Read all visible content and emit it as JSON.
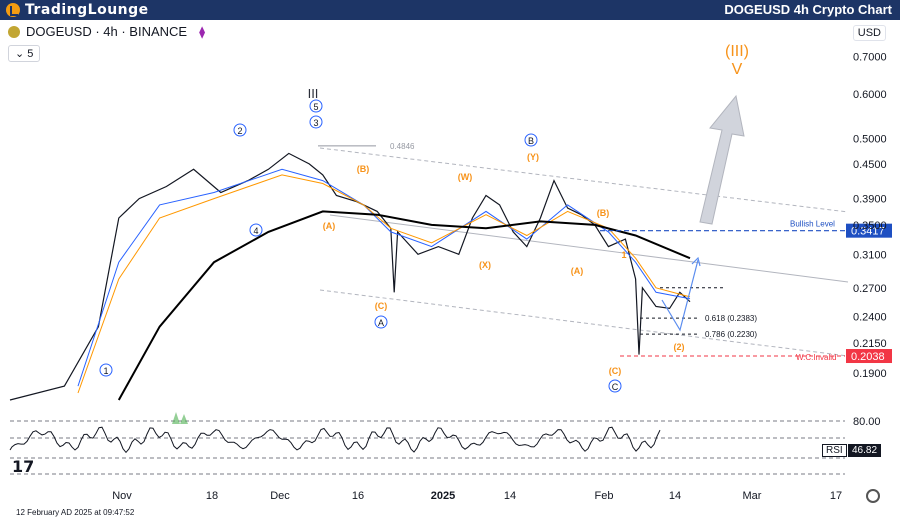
{
  "header": {
    "brand": "TradingLounge",
    "chart_title": "DOGEUSD 4h Crypto Chart"
  },
  "symbol": {
    "label": "DOGEUSD · 4h · BINANCE"
  },
  "indicators_count": "5",
  "currency": "USD",
  "footer": {
    "timestamp": "12 February AD 2025 at 09:47:52"
  },
  "rsi": {
    "label": "RSI",
    "value": "46.82",
    "level": "80.00"
  },
  "chart_data": {
    "type": "line",
    "scale": "log",
    "ylim": [
      0.17,
      0.75
    ],
    "y_ticks": [
      "0.7000",
      "0.6000",
      "0.5000",
      "0.4500",
      "0.3900",
      "0.3500",
      "0.3100",
      "0.2700",
      "0.2400",
      "0.2150",
      "0.1900"
    ],
    "x_ticks": [
      "Nov",
      "18",
      "Dec",
      "16",
      "2025",
      "14",
      "Feb",
      "14",
      "Mar",
      "17"
    ],
    "price_labels": [
      {
        "text": "0.3417",
        "kind": "bullish",
        "color": "#1e4fc2"
      },
      {
        "text": "0.2038",
        "kind": "invalid",
        "color": "#f23645"
      }
    ],
    "levels": [
      {
        "label": "Bullish Level",
        "value": 0.3417
      },
      {
        "label": "W.C.Invalid",
        "value": 0.2038
      },
      {
        "label": "0.618 (0.2383)",
        "value": 0.2383
      },
      {
        "label": "0.786 (0.2230)",
        "value": 0.223
      },
      {
        "label": "0.4846",
        "value": 0.4846
      }
    ],
    "series": [
      {
        "name": "",
        "color": "#131722",
        "points": [
          [
            0.0,
            0.17
          ],
          [
            0.08,
            0.18
          ],
          [
            0.13,
            0.23
          ],
          [
            0.16,
            0.36
          ],
          [
            0.19,
            0.39
          ],
          [
            0.23,
            0.41
          ],
          [
            0.27,
            0.44
          ],
          [
            0.31,
            0.4
          ],
          [
            0.35,
            0.42
          ],
          [
            0.38,
            0.44
          ],
          [
            0.41,
            0.47
          ],
          [
            0.44,
            0.45
          ],
          [
            0.46,
            0.43
          ],
          [
            0.48,
            0.395
          ],
          [
            0.51,
            0.385
          ],
          [
            0.54,
            0.37
          ],
          [
            0.56,
            0.345
          ],
          [
            0.565,
            0.265
          ],
          [
            0.57,
            0.34
          ],
          [
            0.6,
            0.31
          ],
          [
            0.63,
            0.32
          ],
          [
            0.66,
            0.31
          ],
          [
            0.68,
            0.36
          ],
          [
            0.7,
            0.395
          ],
          [
            0.72,
            0.38
          ],
          [
            0.74,
            0.34
          ],
          [
            0.76,
            0.32
          ],
          [
            0.78,
            0.36
          ],
          [
            0.8,
            0.42
          ],
          [
            0.82,
            0.375
          ],
          [
            0.84,
            0.365
          ],
          [
            0.86,
            0.35
          ],
          [
            0.88,
            0.32
          ],
          [
            0.905,
            0.33
          ],
          [
            0.92,
            0.28
          ],
          [
            0.925,
            0.205
          ],
          [
            0.93,
            0.27
          ],
          [
            0.95,
            0.25
          ],
          [
            0.97,
            0.248
          ],
          [
            0.985,
            0.265
          ],
          [
            1.0,
            0.255
          ]
        ]
      },
      {
        "name": "",
        "color": "#2962ff",
        "points": [
          [
            0.1,
            0.18
          ],
          [
            0.16,
            0.3
          ],
          [
            0.22,
            0.38
          ],
          [
            0.3,
            0.4
          ],
          [
            0.4,
            0.44
          ],
          [
            0.46,
            0.42
          ],
          [
            0.52,
            0.38
          ],
          [
            0.56,
            0.34
          ],
          [
            0.62,
            0.32
          ],
          [
            0.7,
            0.37
          ],
          [
            0.76,
            0.33
          ],
          [
            0.82,
            0.38
          ],
          [
            0.88,
            0.34
          ],
          [
            0.92,
            0.3
          ],
          [
            0.95,
            0.265
          ],
          [
            1.0,
            0.258
          ]
        ]
      },
      {
        "name": "",
        "color": "#ff9800",
        "points": [
          [
            0.1,
            0.175
          ],
          [
            0.16,
            0.28
          ],
          [
            0.22,
            0.36
          ],
          [
            0.3,
            0.39
          ],
          [
            0.4,
            0.43
          ],
          [
            0.46,
            0.415
          ],
          [
            0.52,
            0.38
          ],
          [
            0.56,
            0.345
          ],
          [
            0.62,
            0.325
          ],
          [
            0.7,
            0.365
          ],
          [
            0.76,
            0.335
          ],
          [
            0.82,
            0.37
          ],
          [
            0.88,
            0.345
          ],
          [
            0.92,
            0.305
          ],
          [
            0.95,
            0.27
          ],
          [
            1.0,
            0.26
          ]
        ]
      },
      {
        "name": "",
        "color": "#000000",
        "points": [
          [
            0.16,
            0.17
          ],
          [
            0.22,
            0.23
          ],
          [
            0.3,
            0.3
          ],
          [
            0.38,
            0.34
          ],
          [
            0.46,
            0.37
          ],
          [
            0.54,
            0.365
          ],
          [
            0.62,
            0.35
          ],
          [
            0.7,
            0.345
          ],
          [
            0.78,
            0.355
          ],
          [
            0.86,
            0.35
          ],
          [
            0.92,
            0.335
          ],
          [
            1.0,
            0.305
          ]
        ]
      }
    ],
    "wave_labels": [
      {
        "text": "1",
        "style": "circle"
      },
      {
        "text": "2",
        "style": "circle"
      },
      {
        "text": "3",
        "style": "circle"
      },
      {
        "text": "4",
        "style": "circle"
      },
      {
        "text": "5",
        "style": "circle"
      },
      {
        "text": "III",
        "style": "roman"
      },
      {
        "text": "(A)",
        "style": "orange"
      },
      {
        "text": "(B)",
        "style": "orange"
      },
      {
        "text": "(C)",
        "style": "orange"
      },
      {
        "text": "A",
        "style": "circle"
      },
      {
        "text": "(W)",
        "style": "orange"
      },
      {
        "text": "(X)",
        "style": "orange"
      },
      {
        "text": "(Y)",
        "style": "orange"
      },
      {
        "text": "B",
        "style": "circle"
      },
      {
        "text": "(A)",
        "style": "orange"
      },
      {
        "text": "(B)",
        "style": "orange"
      },
      {
        "text": "(C)",
        "style": "orange"
      },
      {
        "text": "C",
        "style": "circle"
      },
      {
        "text": "1",
        "style": "orange"
      },
      {
        "text": "(2)",
        "style": "orange"
      },
      {
        "text": "(III)",
        "style": "orange-big"
      },
      {
        "text": "V",
        "style": "orange-big"
      }
    ]
  }
}
